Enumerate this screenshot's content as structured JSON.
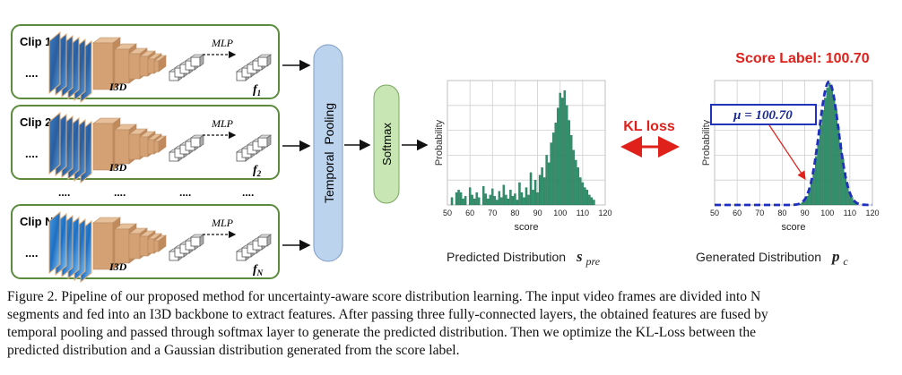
{
  "clips": [
    {
      "label": "Clip 1",
      "dots": "....",
      "backbone": "I3D",
      "mlp": "MLP",
      "feat_base": "f",
      "feat_sub": "1"
    },
    {
      "label": "Clip 2",
      "dots": "....",
      "backbone": "I3D",
      "mlp": "MLP",
      "feat_base": "f",
      "feat_sub": "2"
    },
    {
      "label": "Clip N",
      "dots": "....",
      "backbone": "I3D",
      "mlp": "MLP",
      "feat_base": "f",
      "feat_sub": "N"
    }
  ],
  "ellipsis_row": "....",
  "temporal_pooling": "Temporal  Pooling",
  "softmax": "Softmax",
  "kl_loss": "KL loss",
  "score_label_title": "Score Label: 100.70",
  "mu_label": "μ = 100.70",
  "predicted_caption": {
    "text": "Predicted Distribution",
    "sym": "s",
    "sub": "pre"
  },
  "generated_caption": {
    "text": "Generated Distribution",
    "sym": "p",
    "sub": "c"
  },
  "colors": {
    "clip_border": "#5b8c3e",
    "i3d": "#d4a174",
    "pooling_fill": "#bcd3ee",
    "softmax_fill": "#c8e6b4",
    "kl_red": "#e0201a",
    "bar_fill": "#2f8f6a",
    "gauss_line": "#1f2fbf"
  },
  "chart_data": [
    {
      "type": "bar",
      "title": "",
      "xlabel": "score",
      "ylabel": "Probability",
      "xlim": [
        50,
        120
      ],
      "xticks": [
        "50",
        "60",
        "70",
        "80",
        "90",
        "100",
        "110",
        "120"
      ],
      "x": [
        52,
        54,
        55,
        56,
        57,
        58,
        60,
        61,
        62,
        63,
        64,
        66,
        67,
        68,
        69,
        70,
        71,
        72,
        73,
        74,
        75,
        76,
        77,
        78,
        79,
        80,
        81,
        82,
        83,
        84,
        85,
        86,
        87,
        88,
        89,
        90,
        91,
        92,
        93,
        94,
        95,
        96,
        97,
        98,
        99,
        100,
        101,
        102,
        103,
        104,
        105,
        106,
        107,
        108,
        109,
        110,
        111,
        112,
        113,
        114,
        115
      ],
      "values": [
        0.06,
        0.1,
        0.12,
        0.1,
        0.05,
        0.07,
        0.14,
        0.08,
        0.05,
        0.1,
        0.06,
        0.15,
        0.09,
        0.05,
        0.08,
        0.13,
        0.07,
        0.04,
        0.11,
        0.06,
        0.16,
        0.08,
        0.05,
        0.12,
        0.07,
        0.09,
        0.04,
        0.18,
        0.1,
        0.06,
        0.14,
        0.08,
        0.26,
        0.12,
        0.2,
        0.1,
        0.24,
        0.3,
        0.22,
        0.4,
        0.34,
        0.5,
        0.58,
        0.66,
        0.78,
        0.9,
        0.86,
        0.92,
        0.8,
        0.68,
        0.56,
        0.44,
        0.36,
        0.3,
        0.22,
        0.18,
        0.14,
        0.12,
        0.08,
        0.06,
        0.04
      ]
    },
    {
      "type": "bar",
      "title": "",
      "xlabel": "score",
      "ylabel": "Probability",
      "xlim": [
        50,
        120
      ],
      "xticks": [
        "50",
        "60",
        "70",
        "80",
        "90",
        "100",
        "110",
        "120"
      ],
      "x": [
        88,
        89,
        90,
        91,
        92,
        93,
        94,
        95,
        96,
        97,
        98,
        99,
        100,
        101,
        102,
        103,
        104,
        105,
        106,
        107,
        108,
        109,
        110,
        111,
        112,
        113
      ],
      "values": [
        0.01,
        0.02,
        0.04,
        0.07,
        0.12,
        0.19,
        0.28,
        0.39,
        0.52,
        0.64,
        0.76,
        0.86,
        0.94,
        0.98,
        0.95,
        0.87,
        0.76,
        0.63,
        0.5,
        0.37,
        0.26,
        0.17,
        0.1,
        0.06,
        0.03,
        0.01
      ],
      "gaussian_mean": 100.7
    }
  ],
  "caption_lines": [
    "Figure 2. Pipeline of our proposed method for uncertainty-aware score distribution learning. The input video frames are divided into N",
    "segments and fed into an I3D backbone to extract features. After passing three fully-connected layers, the obtained features are fused by",
    "temporal pooling and passed through softmax layer to generate the predicted distribution. Then we optimize the KL-Loss between the",
    "predicted distribution and a Gaussian distribution generated from the score label."
  ]
}
